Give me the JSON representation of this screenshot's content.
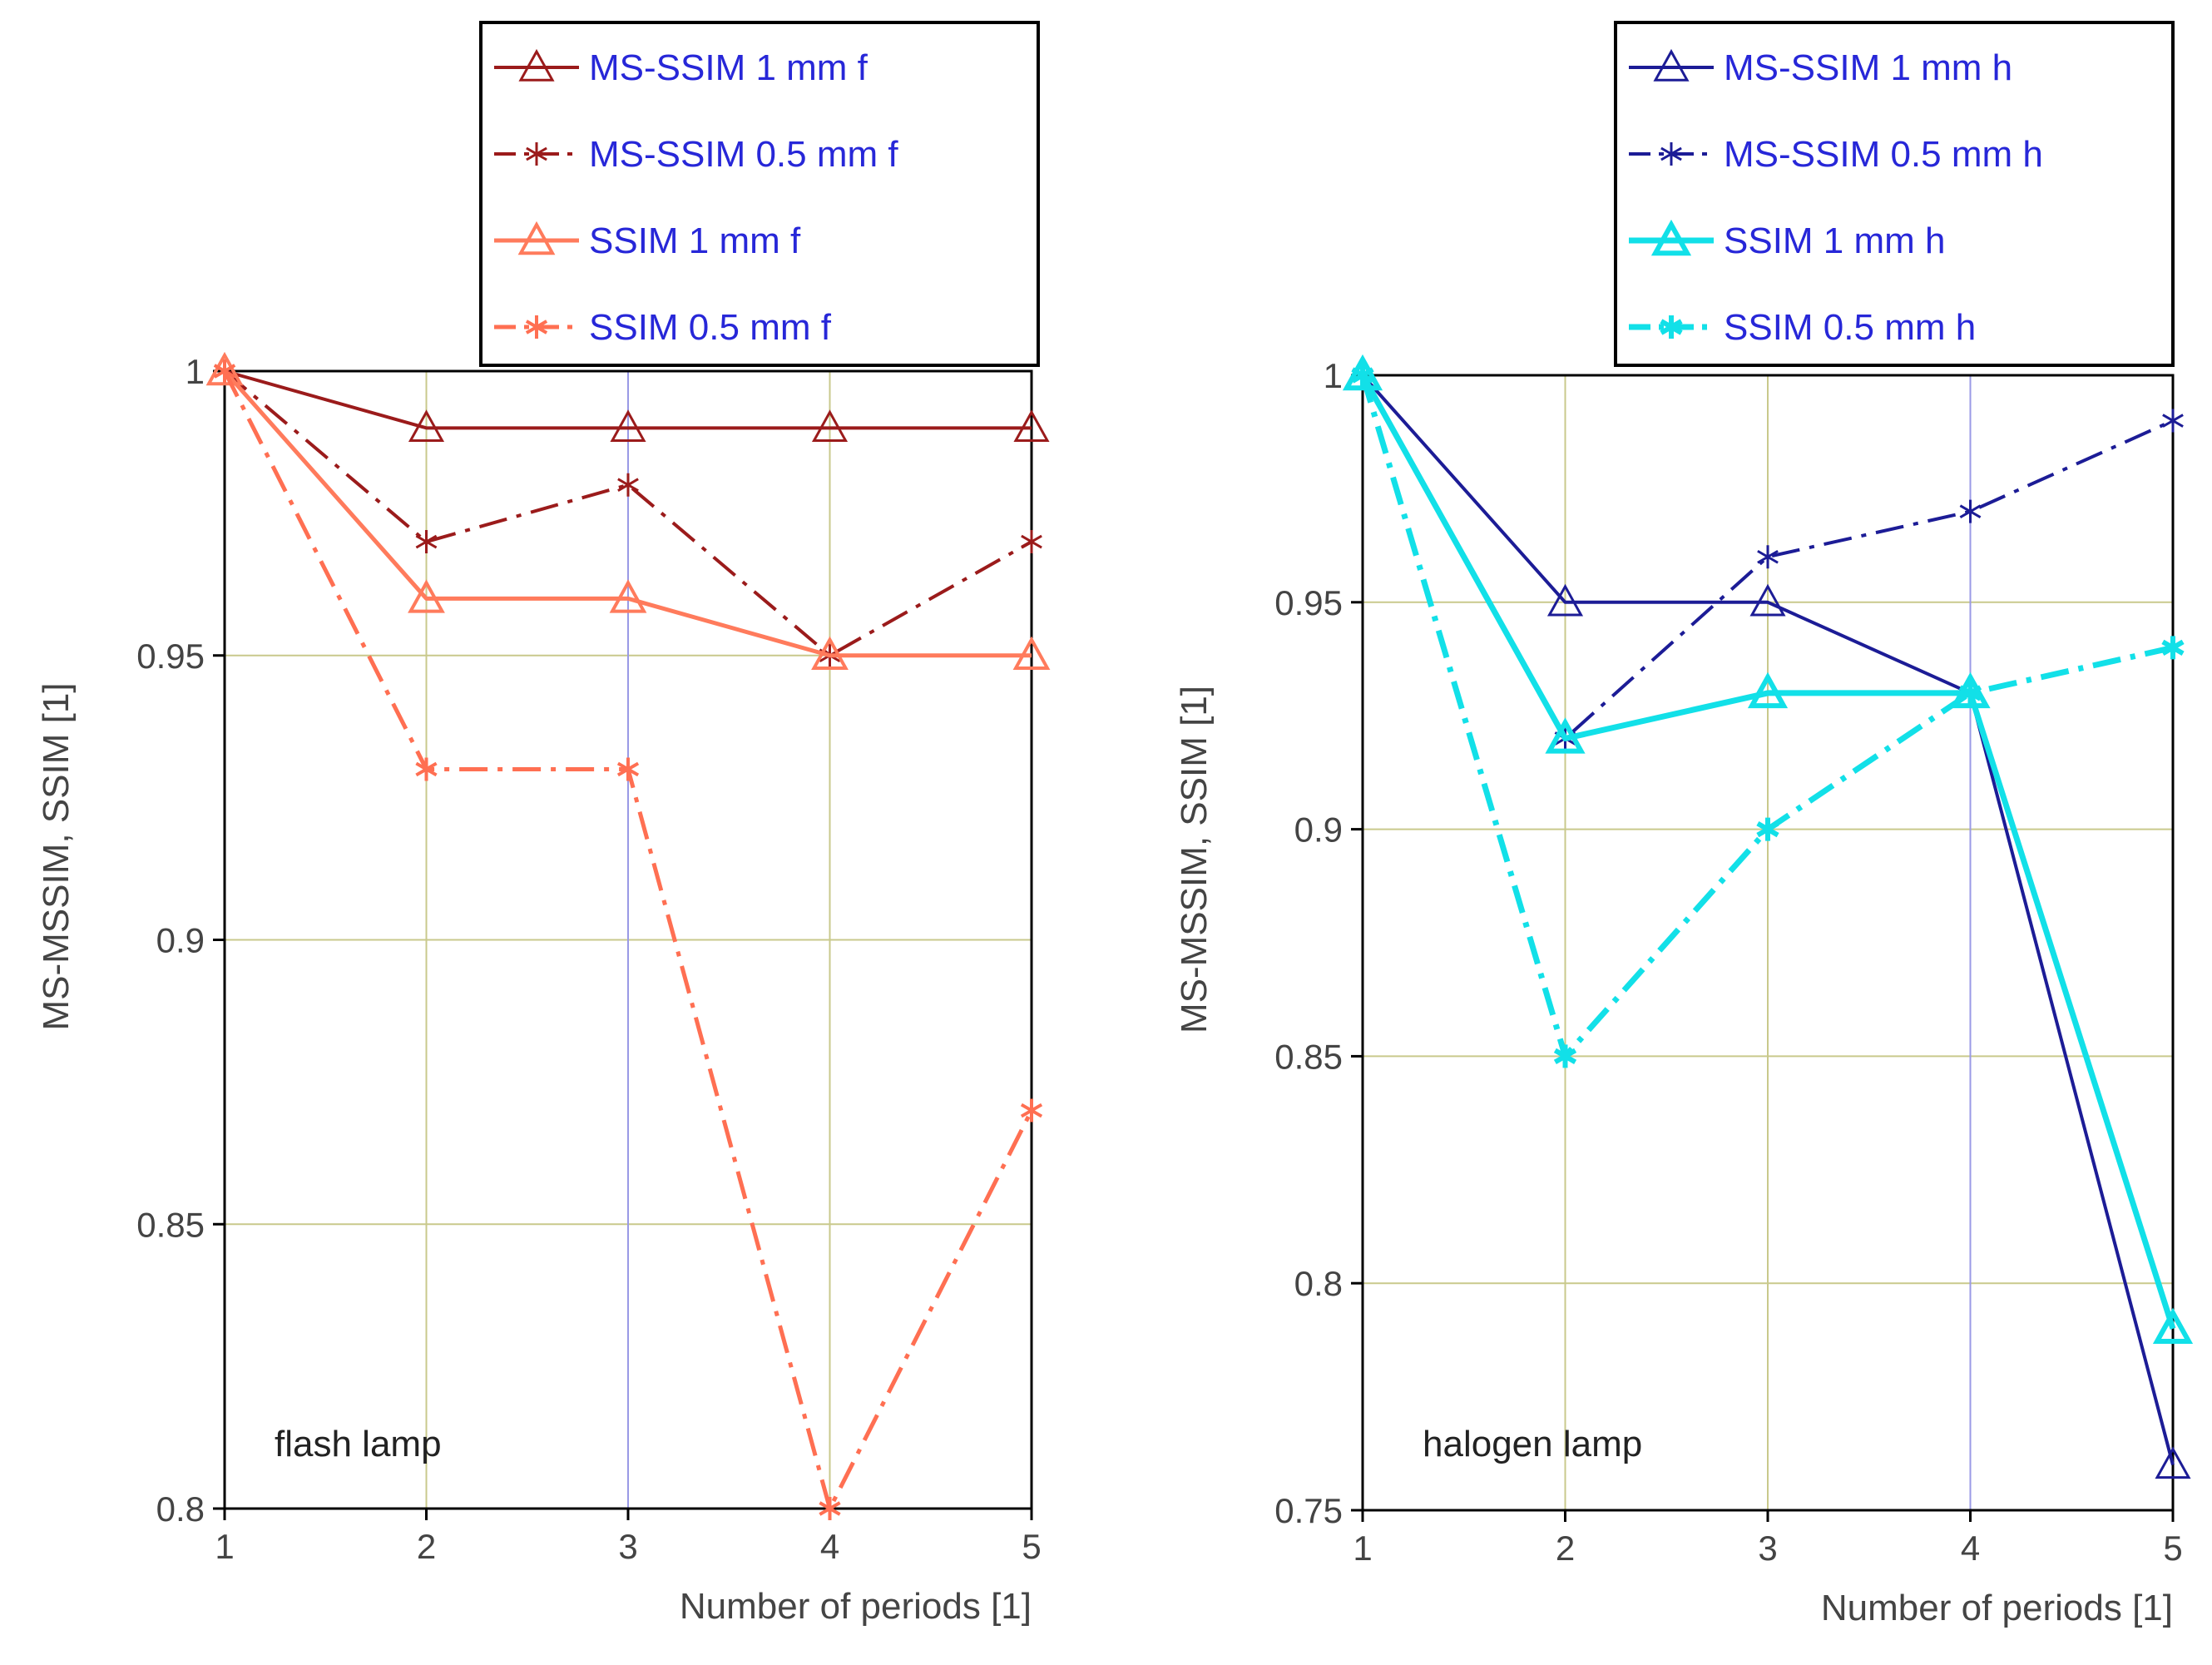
{
  "chart_data": [
    {
      "type": "line",
      "annotation": "flash lamp",
      "xlabel": "Number of periods [1]",
      "ylabel": "MS-MSSIM, SSIM [1]",
      "x": [
        1,
        2,
        3,
        4,
        5
      ],
      "xlim": [
        1,
        5
      ],
      "ylim": [
        0.8,
        1.0
      ],
      "xticks": [
        "1",
        "2",
        "3",
        "4",
        "5"
      ],
      "yticks": [
        {
          "value": 0.8,
          "label": "0.8"
        },
        {
          "value": 0.85,
          "label": "0.85"
        },
        {
          "value": 0.9,
          "label": "0.9"
        },
        {
          "value": 0.95,
          "label": "0.95"
        },
        {
          "value": 1.0,
          "label": "1"
        }
      ],
      "highlight_x": 3,
      "series": [
        {
          "name": "MS-SSIM 1 mm f",
          "values": [
            1.0,
            0.99,
            0.99,
            0.99,
            0.99
          ],
          "color": "#9b1b1b",
          "dash": "solid",
          "marker": "triangle",
          "width": "thin"
        },
        {
          "name": "MS-SSIM 0.5 mm f",
          "values": [
            1.0,
            0.97,
            0.98,
            0.95,
            0.97
          ],
          "color": "#9b1b1b",
          "dash": "dashdot",
          "marker": "star",
          "width": "thin"
        },
        {
          "name": "SSIM 1 mm f",
          "values": [
            1.0,
            0.96,
            0.96,
            0.95,
            0.95
          ],
          "color": "#ff7b5c",
          "dash": "solid",
          "marker": "triangle",
          "width": "medium"
        },
        {
          "name": "SSIM 0.5 mm f",
          "values": [
            1.0,
            0.93,
            0.93,
            0.8,
            0.87
          ],
          "color": "#ff6f52",
          "dash": "dashdot",
          "marker": "star",
          "width": "medium"
        }
      ]
    },
    {
      "type": "line",
      "annotation": "halogen lamp",
      "xlabel": "Number of periods [1]",
      "ylabel": "MS-MSSIM, SSIM [1]",
      "x": [
        1,
        2,
        3,
        4,
        5
      ],
      "xlim": [
        1,
        5
      ],
      "ylim": [
        0.75,
        1.0
      ],
      "xticks": [
        "1",
        "2",
        "3",
        "4",
        "5"
      ],
      "yticks": [
        {
          "value": 0.75,
          "label": "0.75"
        },
        {
          "value": 0.8,
          "label": "0.8"
        },
        {
          "value": 0.85,
          "label": "0.85"
        },
        {
          "value": 0.9,
          "label": "0.9"
        },
        {
          "value": 0.95,
          "label": "0.95"
        },
        {
          "value": 1.0,
          "label": "1"
        }
      ],
      "highlight_x": 4,
      "series": [
        {
          "name": "MS-SSIM 1 mm h",
          "values": [
            1.0,
            0.95,
            0.95,
            0.93,
            0.76
          ],
          "color": "#1c1c96",
          "dash": "solid",
          "marker": "triangle",
          "width": "thin"
        },
        {
          "name": "MS-SSIM 0.5 mm h",
          "values": [
            1.0,
            0.92,
            0.96,
            0.97,
            0.99
          ],
          "color": "#1c1c96",
          "dash": "dashdot",
          "marker": "star",
          "width": "thin"
        },
        {
          "name": "SSIM 1 mm h",
          "values": [
            1.0,
            0.92,
            0.93,
            0.93,
            0.79
          ],
          "color": "#12e0e8",
          "dash": "solid",
          "marker": "triangle",
          "width": "thick"
        },
        {
          "name": "SSIM 0.5 mm h",
          "values": [
            1.0,
            0.85,
            0.9,
            0.93,
            0.94
          ],
          "color": "#12e0e8",
          "dash": "dashdot",
          "marker": "star",
          "width": "thick"
        }
      ]
    }
  ],
  "colors": {
    "legend_text": "#2727d8",
    "axis": "#000000",
    "grid": "#c9c98c",
    "grid_highlight": "#9a9ae6",
    "label_text": "#444444"
  }
}
